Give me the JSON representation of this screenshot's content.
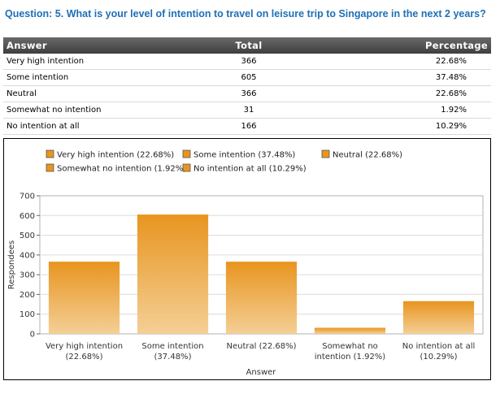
{
  "question": "Question: 5. What is your level of intention to travel on leisure trip to Singapore in the next 2 years?",
  "table": {
    "headers": {
      "answer": "Answer",
      "total": "Total",
      "percentage": "Percentage"
    },
    "rows": [
      {
        "answer": "Very high intention",
        "total": "366",
        "percentage": "22.68%"
      },
      {
        "answer": "Some intention",
        "total": "605",
        "percentage": "37.48%"
      },
      {
        "answer": "Neutral",
        "total": "366",
        "percentage": "22.68%"
      },
      {
        "answer": "Somewhat no intention",
        "total": "31",
        "percentage": "1.92%"
      },
      {
        "answer": "No intention at all",
        "total": "166",
        "percentage": "10.29%"
      }
    ]
  },
  "chart_data": {
    "type": "bar",
    "categories": [
      "Very high intention (22.68%)",
      "Some intention (37.48%)",
      "Neutral (22.68%)",
      "Somewhat no intention (1.92%)",
      "No intention at all (10.29%)"
    ],
    "category_tick_lines": [
      [
        "Very high intention",
        "(22.68%)"
      ],
      [
        "Some intention",
        "(37.48%)"
      ],
      [
        "Neutral (22.68%)"
      ],
      [
        "Somewhat no",
        "intention (1.92%)"
      ],
      [
        "No intention at all",
        "(10.29%)"
      ]
    ],
    "values": [
      366,
      605,
      366,
      31,
      166
    ],
    "legend": [
      "Very high intention (22.68%)",
      "Some intention (37.48%)",
      "Neutral (22.68%)",
      "Somewhat no intention (1.92%)",
      "No intention at all (10.29%)"
    ],
    "legend_position": "top",
    "xlabel": "Answer",
    "ylabel": "Respondees",
    "ylim": [
      0,
      700
    ],
    "yticks": [
      0,
      100,
      200,
      300,
      400,
      500,
      600,
      700
    ],
    "grid": true,
    "bar_color_top": "#e8951f",
    "bar_color_bottom": "#f4cf96"
  }
}
